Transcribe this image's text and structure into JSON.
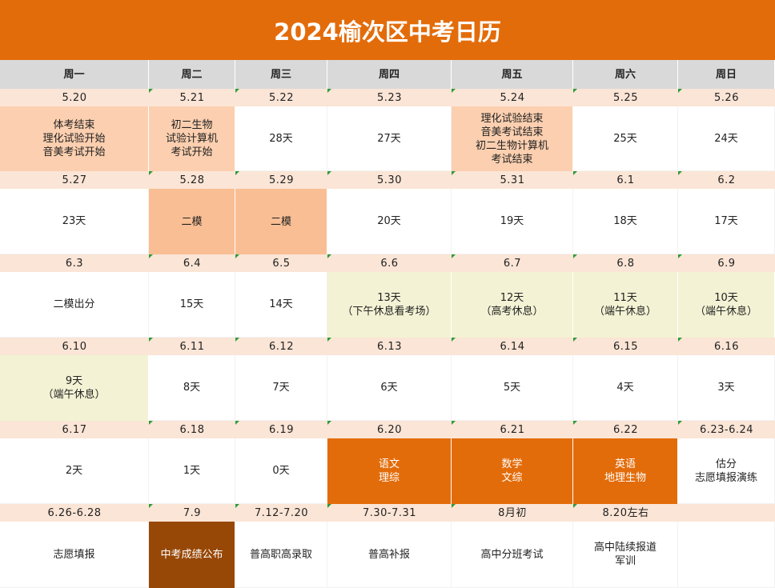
{
  "title": "2024榆次区中考日历",
  "weekdays": [
    "周一",
    "周二",
    "周三",
    "周四",
    "周五",
    "周六",
    "周日"
  ],
  "colors": {
    "title_bg": "#e36c0a",
    "header_bg": "#d9d9d9",
    "date_bg": "#fbe5d6",
    "peach": "#fbcfaf",
    "tan": "#f9be94",
    "cream": "#f3f2d4",
    "orange": "#e36c0a",
    "brown": "#974806"
  },
  "weeks": [
    {
      "dates": [
        "5.20",
        "5.21",
        "5.22",
        "5.23",
        "5.24",
        "5.25",
        "5.26"
      ],
      "cells": [
        {
          "lines": [
            "体考结束",
            "理化试验开始",
            "音美考试开始"
          ],
          "style": "peach"
        },
        {
          "lines": [
            "初二生物",
            "试验计算机",
            "考试开始"
          ],
          "style": "peach"
        },
        {
          "lines": [
            "28天"
          ],
          "style": "white"
        },
        {
          "lines": [
            "27天"
          ],
          "style": "white"
        },
        {
          "lines": [
            "理化试验结束",
            "音美考试结束",
            "初二生物计算机",
            "考试结束"
          ],
          "style": "peach"
        },
        {
          "lines": [
            "25天"
          ],
          "style": "white"
        },
        {
          "lines": [
            "24天"
          ],
          "style": "white"
        }
      ]
    },
    {
      "dates": [
        "5.27",
        "5.28",
        "5.29",
        "5.30",
        "5.31",
        "6.1",
        "6.2"
      ],
      "cells": [
        {
          "lines": [
            "23天"
          ],
          "style": "white"
        },
        {
          "lines": [
            "二模"
          ],
          "style": "tan"
        },
        {
          "lines": [
            "二模"
          ],
          "style": "tan"
        },
        {
          "lines": [
            "20天"
          ],
          "style": "white"
        },
        {
          "lines": [
            "19天"
          ],
          "style": "white"
        },
        {
          "lines": [
            "18天"
          ],
          "style": "white"
        },
        {
          "lines": [
            "17天"
          ],
          "style": "white"
        }
      ]
    },
    {
      "dates": [
        "6.3",
        "6.4",
        "6.5",
        "6.6",
        "6.7",
        "6.8",
        "6.9"
      ],
      "cells": [
        {
          "lines": [
            "二模出分"
          ],
          "style": "white"
        },
        {
          "lines": [
            "15天"
          ],
          "style": "white"
        },
        {
          "lines": [
            "14天"
          ],
          "style": "white"
        },
        {
          "lines": [
            "13天",
            "（下午休息看考场）"
          ],
          "style": "cream"
        },
        {
          "lines": [
            "12天",
            "（高考休息）"
          ],
          "style": "cream"
        },
        {
          "lines": [
            "11天",
            "（端午休息）"
          ],
          "style": "cream"
        },
        {
          "lines": [
            "10天",
            "（端午休息）"
          ],
          "style": "cream"
        }
      ]
    },
    {
      "dates": [
        "6.10",
        "6.11",
        "6.12",
        "6.13",
        "6.14",
        "6.15",
        "6.16"
      ],
      "cells": [
        {
          "lines": [
            "9天",
            "（端午休息）"
          ],
          "style": "cream"
        },
        {
          "lines": [
            "8天"
          ],
          "style": "white"
        },
        {
          "lines": [
            "7天"
          ],
          "style": "white"
        },
        {
          "lines": [
            "6天"
          ],
          "style": "white"
        },
        {
          "lines": [
            "5天"
          ],
          "style": "white"
        },
        {
          "lines": [
            "4天"
          ],
          "style": "white"
        },
        {
          "lines": [
            "3天"
          ],
          "style": "white"
        }
      ]
    },
    {
      "dates": [
        "6.17",
        "6.18",
        "6.19",
        "6.20",
        "6.21",
        "6.22",
        "6.23-6.24"
      ],
      "cells": [
        {
          "lines": [
            "2天"
          ],
          "style": "white"
        },
        {
          "lines": [
            "1天"
          ],
          "style": "white"
        },
        {
          "lines": [
            "0天"
          ],
          "style": "white"
        },
        {
          "lines": [
            "语文",
            "理综"
          ],
          "style": "orange"
        },
        {
          "lines": [
            "数学",
            "文综"
          ],
          "style": "orange"
        },
        {
          "lines": [
            "英语",
            "地理生物"
          ],
          "style": "orange"
        },
        {
          "lines": [
            "估分",
            "志愿填报演练"
          ],
          "style": "white"
        }
      ]
    },
    {
      "dates": [
        "6.26-6.28",
        "7.9",
        "7.12-7.20",
        "7.30-7.31",
        "8月初",
        "8.20左右",
        ""
      ],
      "cells": [
        {
          "lines": [
            "志愿填报"
          ],
          "style": "white"
        },
        {
          "lines": [
            "中考成绩公布"
          ],
          "style": "brown"
        },
        {
          "lines": [
            "普高职高录取"
          ],
          "style": "white"
        },
        {
          "lines": [
            "普高补报"
          ],
          "style": "white"
        },
        {
          "lines": [
            "高中分班考试"
          ],
          "style": "white"
        },
        {
          "lines": [
            "高中陆续报道",
            "军训"
          ],
          "style": "white"
        },
        {
          "lines": [
            ""
          ],
          "style": "white"
        }
      ]
    }
  ]
}
